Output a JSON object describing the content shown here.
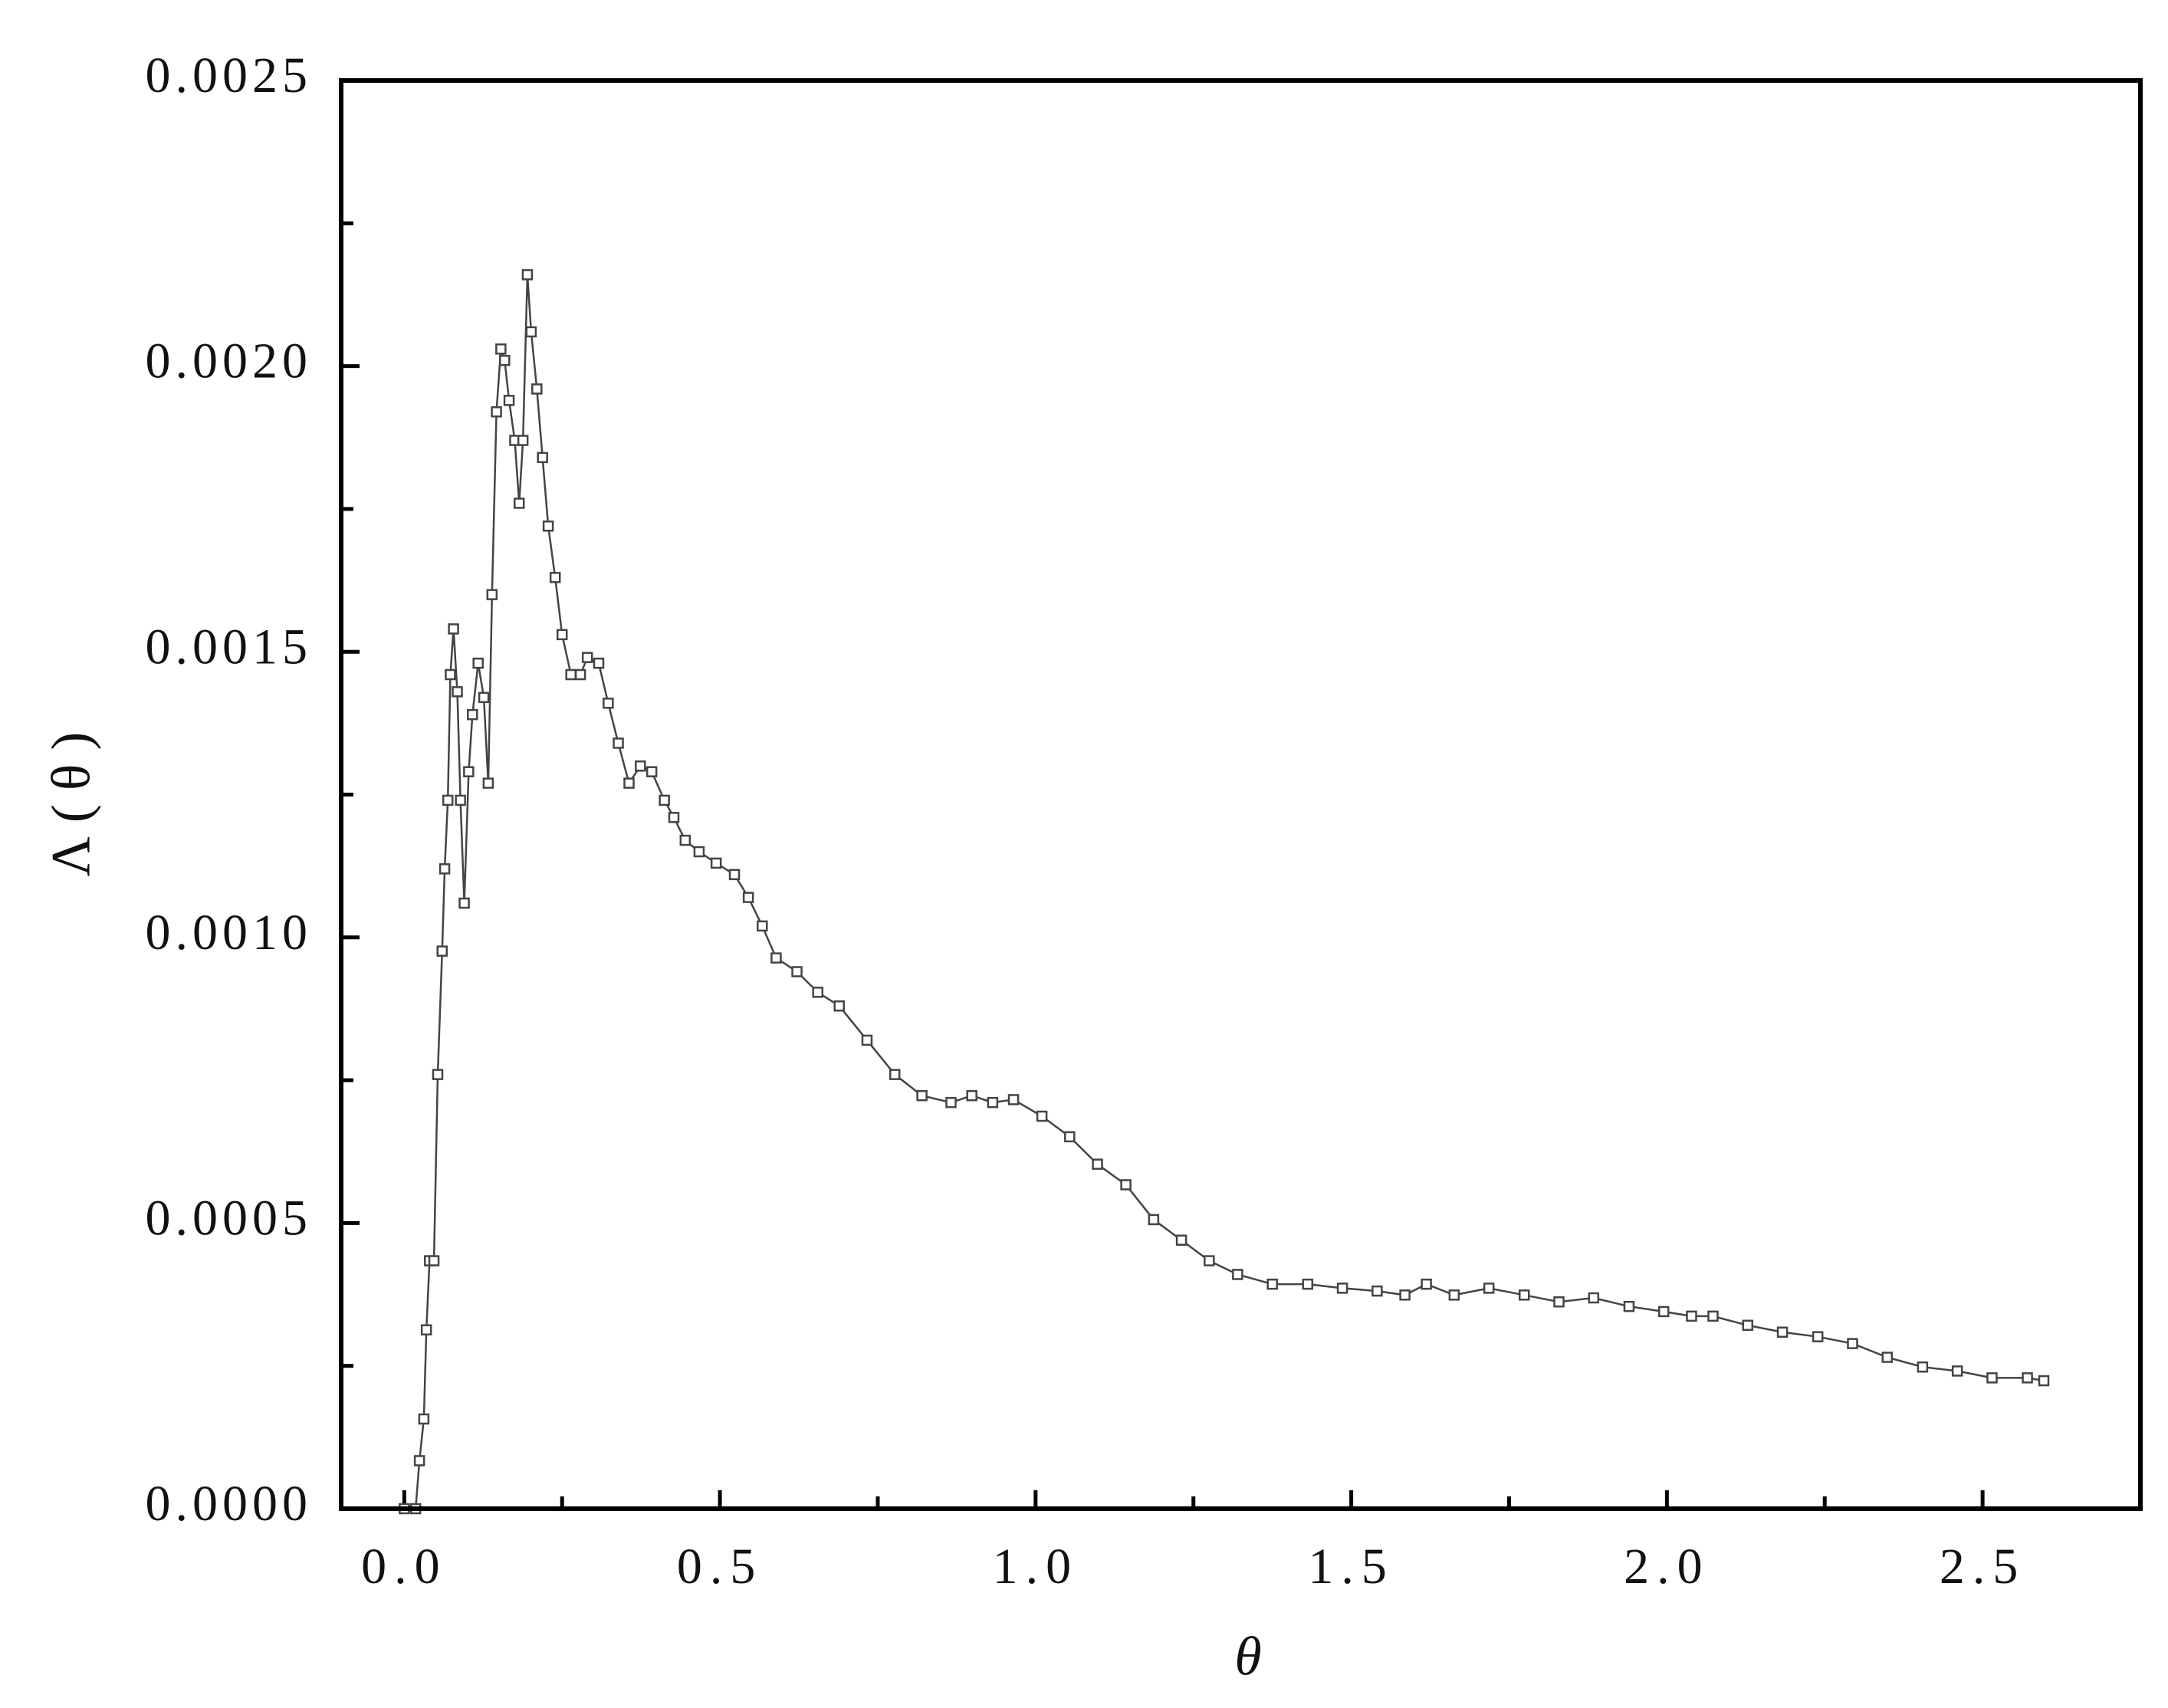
{
  "chart_data": {
    "type": "line",
    "xlabel": "θ",
    "ylabel": "Λ(θ)",
    "xlim": [
      -0.1,
      2.75
    ],
    "ylim": [
      0,
      0.0025
    ],
    "xticks": [
      {
        "value": 0,
        "label": "0.0"
      },
      0.5,
      {
        "value": 1,
        "label": "1.0"
      },
      1.5,
      {
        "value": 2,
        "label": "2.0"
      },
      2.5
    ],
    "xminorticks": [
      0.25,
      0.75,
      1.25,
      1.75,
      2.25
    ],
    "yticks": [
      {
        "value": 0,
        "label": "0.0000"
      },
      0.0005,
      {
        "value": 0.001,
        "label": "0.0010"
      },
      0.0015,
      {
        "value": 0.002,
        "label": "0.0020"
      },
      0.0025
    ],
    "yminorticks": [
      0.00025,
      0.00075,
      0.00125,
      0.00175,
      0.00225
    ],
    "marker": "square",
    "x": [
      0,
      0.018,
      0.024,
      0.031,
      0.035,
      0.04,
      0.047,
      0.053,
      0.06,
      0.064,
      0.069,
      0.073,
      0.078,
      0.084,
      0.089,
      0.095,
      0.102,
      0.108,
      0.117,
      0.126,
      0.133,
      0.139,
      0.146,
      0.153,
      0.159,
      0.166,
      0.175,
      0.182,
      0.188,
      0.195,
      0.201,
      0.21,
      0.219,
      0.228,
      0.239,
      0.25,
      0.264,
      0.279,
      0.29,
      0.308,
      0.323,
      0.339,
      0.356,
      0.374,
      0.392,
      0.412,
      0.427,
      0.445,
      0.467,
      0.494,
      0.523,
      0.545,
      0.567,
      0.589,
      0.622,
      0.655,
      0.689,
      0.733,
      0.777,
      0.82,
      0.866,
      0.899,
      0.932,
      0.965,
      1.01,
      1.054,
      1.098,
      1.143,
      1.187,
      1.231,
      1.275,
      1.32,
      1.375,
      1.431,
      1.486,
      1.541,
      1.585,
      1.619,
      1.663,
      1.718,
      1.774,
      1.829,
      1.884,
      1.94,
      1.995,
      2.039,
      2.073,
      2.128,
      2.183,
      2.239,
      2.294,
      2.349,
      2.405,
      2.46,
      2.515,
      2.571,
      2.597
    ],
    "series": [
      {
        "color": "#444444",
        "values": [
          0,
          0,
          8.4e-05,
          0.000157,
          0.000313,
          0.000434,
          0.000434,
          0.00076,
          0.000976,
          0.00112,
          0.00124,
          0.00146,
          0.00154,
          0.00143,
          0.00124,
          0.00106,
          0.00129,
          0.00139,
          0.00148,
          0.00142,
          0.00127,
          0.0016,
          0.00192,
          0.00203,
          0.00201,
          0.00194,
          0.00187,
          0.00176,
          0.00187,
          0.00216,
          0.00206,
          0.00196,
          0.00184,
          0.00172,
          0.00163,
          0.00153,
          0.00146,
          0.00146,
          0.00149,
          0.00148,
          0.00141,
          0.00134,
          0.00127,
          0.0013,
          0.00129,
          0.00124,
          0.00121,
          0.00117,
          0.00115,
          0.00113,
          0.00111,
          0.00107,
          0.00102,
          0.000964,
          0.00094,
          0.000904,
          0.00088,
          0.00082,
          0.00076,
          0.000723,
          0.000711,
          0.000723,
          0.000711,
          0.000716,
          0.000687,
          0.000651,
          0.000603,
          0.000567,
          0.000506,
          0.00047,
          0.000434,
          0.00041,
          0.000393,
          0.000393,
          0.000386,
          0.000381,
          0.000374,
          0.000393,
          0.000374,
          0.000386,
          0.000374,
          0.000362,
          0.000369,
          0.000354,
          0.000345,
          0.000337,
          0.000337,
          0.000321,
          0.000309,
          0.000301,
          0.000289,
          0.000265,
          0.000248,
          0.000241,
          0.000229,
          0.000229,
          0.000224
        ]
      }
    ]
  }
}
